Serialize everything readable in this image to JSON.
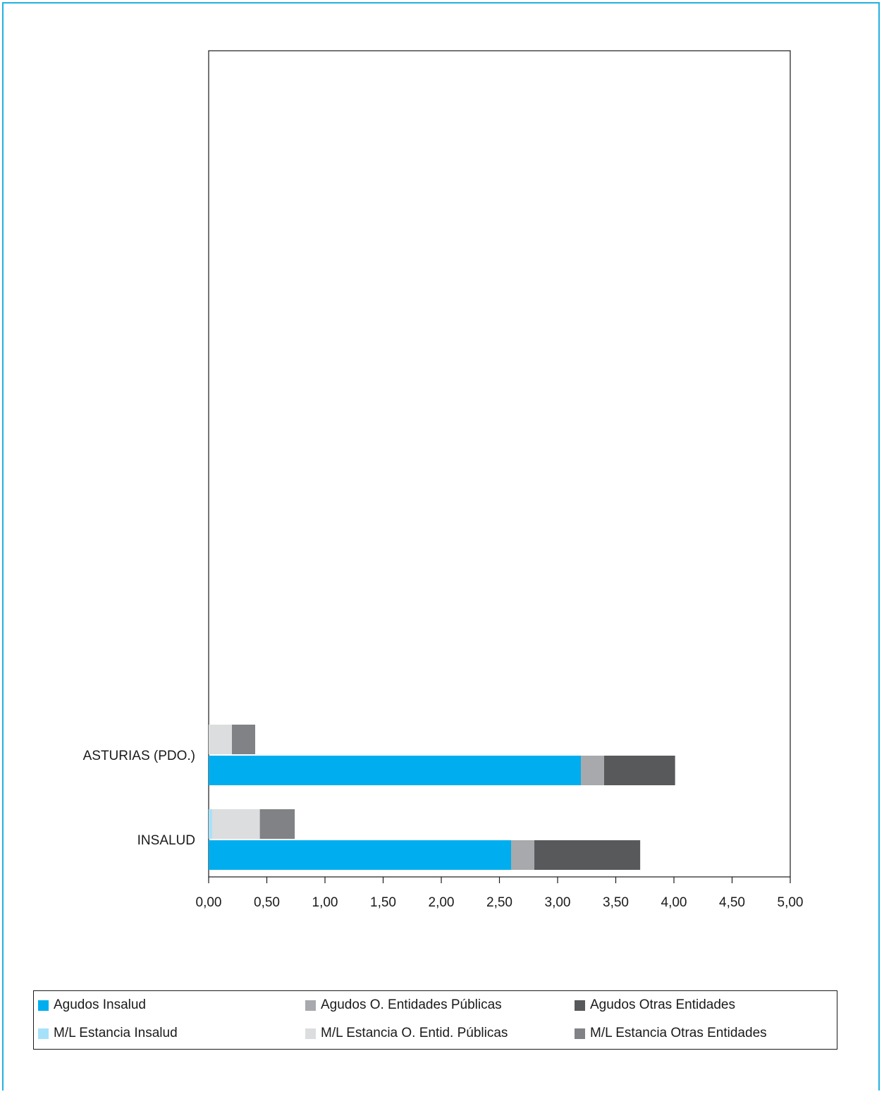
{
  "chart_data": {
    "type": "bar",
    "orientation": "horizontal",
    "stacked": true,
    "categories": [
      "ASTURIAS (PDO.)",
      "INSALUD"
    ],
    "groups": [
      {
        "name": "Agudos",
        "series": [
          {
            "name": "Agudos Insalud",
            "color": "#00aeef",
            "values": [
              3.2,
              2.6
            ]
          },
          {
            "name": "Agudos O. Entidades Públicas",
            "color": "#a7a9ac",
            "values": [
              0.2,
              0.2
            ]
          },
          {
            "name": "Agudos Otras Entidades",
            "color": "#58595b",
            "values": [
              0.61,
              0.91
            ]
          }
        ]
      },
      {
        "name": "M/L Estancia",
        "series": [
          {
            "name": "M/L Estancia Insalud",
            "color": "#a6e1fa",
            "values": [
              0.0,
              0.03
            ]
          },
          {
            "name": "M/L Estancia O. Entid. Públicas",
            "color": "#dcddde",
            "values": [
              0.2,
              0.41
            ]
          },
          {
            "name": "M/L Estancia Otras Entidades",
            "color": "#808285",
            "values": [
              0.2,
              0.3
            ]
          }
        ]
      }
    ],
    "xlim": [
      0,
      5
    ],
    "x_ticks": [
      "0,00",
      "0,50",
      "1,00",
      "1,50",
      "2,00",
      "2,50",
      "3,00",
      "3,50",
      "4,00",
      "4,50",
      "5,00"
    ],
    "grid": false,
    "legend_position": "bottom",
    "title": "",
    "xlabel": "",
    "ylabel": ""
  },
  "legend": [
    {
      "label": "Agudos Insalud",
      "color": "#00aeef"
    },
    {
      "label": "Agudos O. Entidades Públicas",
      "color": "#a7a9ac"
    },
    {
      "label": "Agudos Otras Entidades",
      "color": "#58595b"
    },
    {
      "label": "M/L Estancia Insalud",
      "color": "#a6e1fa"
    },
    {
      "label": "M/L Estancia O. Entid. Públicas",
      "color": "#dcddde"
    },
    {
      "label": "M/L Estancia Otras Entidades",
      "color": "#808285"
    }
  ],
  "frame_color": "#22b0e0"
}
